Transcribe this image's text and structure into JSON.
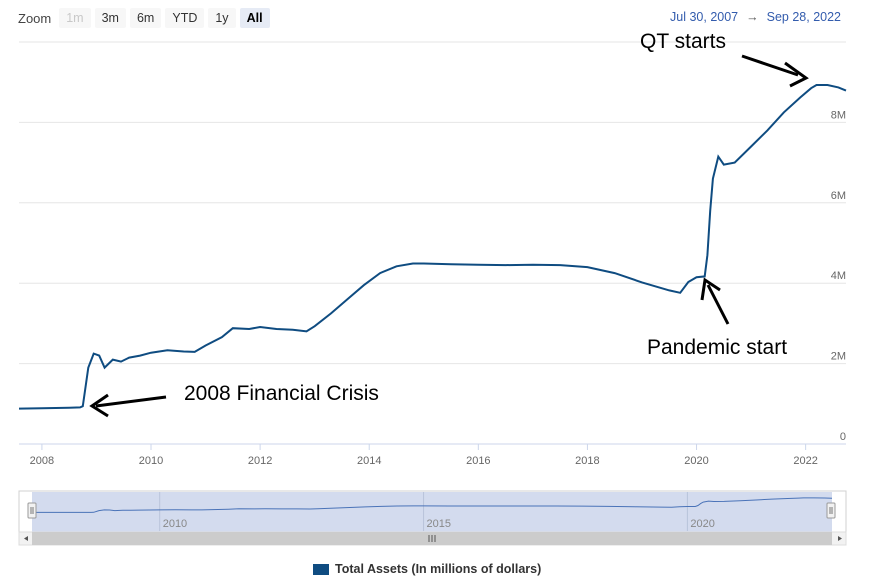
{
  "zoom": {
    "label": "Zoom",
    "buttons": [
      {
        "label": "1m",
        "state": "disabled"
      },
      {
        "label": "3m",
        "state": "normal"
      },
      {
        "label": "6m",
        "state": "normal"
      },
      {
        "label": "YTD",
        "state": "normal"
      },
      {
        "label": "1y",
        "state": "normal"
      },
      {
        "label": "All",
        "state": "active"
      }
    ]
  },
  "range": {
    "from": "Jul 30, 2007",
    "arrow": "→",
    "to": "Sep 28, 2022"
  },
  "annotations": {
    "qt": "QT starts",
    "pandemic": "Pandemic start",
    "crisis": "2008 Financial Crisis"
  },
  "legend": {
    "label": "Total Assets (In millions of dollars)",
    "color": "#0f4c81"
  },
  "chart_data": {
    "type": "line",
    "x_range": [
      2007.58,
      2022.74
    ],
    "ylim": [
      0,
      10000000
    ],
    "y_ticks": [
      {
        "v": 0,
        "label": "0"
      },
      {
        "v": 2000000,
        "label": "2M"
      },
      {
        "v": 4000000,
        "label": "4M"
      },
      {
        "v": 6000000,
        "label": "6M"
      },
      {
        "v": 8000000,
        "label": "8M"
      }
    ],
    "x_ticks": [
      "2008",
      "2010",
      "2012",
      "2014",
      "2016",
      "2018",
      "2020",
      "2022"
    ],
    "navigator_ticks": [
      "2010",
      "2015",
      "2020"
    ],
    "line_color": "#0f4c81",
    "grid": "horizontal",
    "series": [
      {
        "name": "Total Assets (In millions of dollars)",
        "x": [
          2007.58,
          2008.0,
          2008.5,
          2008.7,
          2008.75,
          2008.85,
          2008.95,
          2009.05,
          2009.15,
          2009.3,
          2009.45,
          2009.6,
          2009.8,
          2010.0,
          2010.3,
          2010.6,
          2010.8,
          2011.0,
          2011.3,
          2011.5,
          2011.8,
          2012.0,
          2012.3,
          2012.6,
          2012.85,
          2013.0,
          2013.3,
          2013.6,
          2013.9,
          2014.2,
          2014.5,
          2014.8,
          2015.0,
          2015.5,
          2016.0,
          2016.5,
          2017.0,
          2017.5,
          2018.0,
          2018.5,
          2019.0,
          2019.5,
          2019.7,
          2019.85,
          2020.0,
          2020.15,
          2020.2,
          2020.25,
          2020.3,
          2020.4,
          2020.5,
          2020.7,
          2021.0,
          2021.3,
          2021.6,
          2021.9,
          2022.1,
          2022.2,
          2022.4,
          2022.6,
          2022.74
        ],
        "y": [
          880000,
          890000,
          900000,
          910000,
          940000,
          1900000,
          2250000,
          2200000,
          1900000,
          2100000,
          2050000,
          2150000,
          2200000,
          2270000,
          2330000,
          2300000,
          2290000,
          2450000,
          2660000,
          2880000,
          2860000,
          2910000,
          2860000,
          2840000,
          2800000,
          2930000,
          3250000,
          3600000,
          3950000,
          4250000,
          4420000,
          4490000,
          4490000,
          4470000,
          4460000,
          4450000,
          4460000,
          4450000,
          4400000,
          4250000,
          4020000,
          3820000,
          3760000,
          4030000,
          4150000,
          4170000,
          4700000,
          5800000,
          6600000,
          7150000,
          6950000,
          7000000,
          7400000,
          7800000,
          8250000,
          8620000,
          8850000,
          8930000,
          8930000,
          8870000,
          8790000
        ]
      }
    ]
  }
}
